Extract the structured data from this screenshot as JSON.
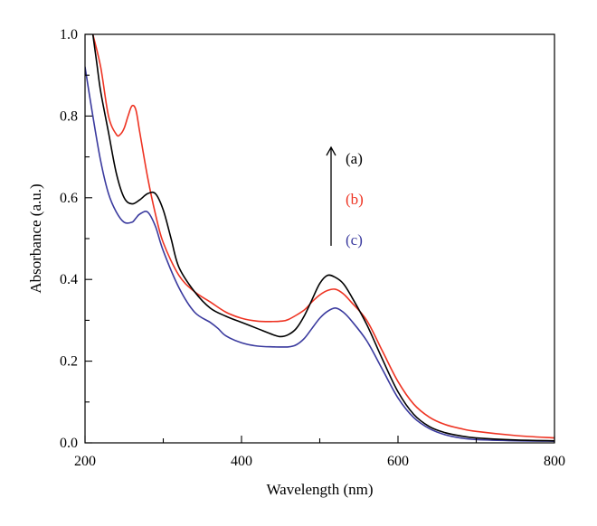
{
  "chart_data": {
    "type": "line",
    "xlabel": "Wavelength (nm)",
    "ylabel": "Absorbance (a.u.)",
    "xlim": [
      200,
      800
    ],
    "ylim": [
      0.0,
      1.0
    ],
    "x_ticks": [
      "200",
      "400",
      "600",
      "800"
    ],
    "y_ticks": [
      "0.0",
      "0.2",
      "0.4",
      "0.6",
      "0.8",
      "1.0"
    ],
    "grid": false,
    "legend": {
      "arrow": "up",
      "entries": [
        "(a)",
        "(b)",
        "(c)"
      ]
    },
    "series": [
      {
        "name": "(a)",
        "color": "#000000",
        "x": [
          210,
          215,
          220,
          230,
          240,
          250,
          260,
          270,
          280,
          290,
          300,
          310,
          320,
          340,
          360,
          380,
          400,
          420,
          440,
          450,
          460,
          470,
          480,
          490,
          500,
          510,
          520,
          530,
          540,
          560,
          580,
          600,
          620,
          640,
          660,
          680,
          700,
          750,
          800
        ],
        "y": [
          1.0,
          0.93,
          0.86,
          0.76,
          0.66,
          0.6,
          0.585,
          0.595,
          0.61,
          0.61,
          0.57,
          0.5,
          0.43,
          0.37,
          0.33,
          0.31,
          0.295,
          0.28,
          0.265,
          0.26,
          0.265,
          0.28,
          0.31,
          0.35,
          0.39,
          0.41,
          0.405,
          0.39,
          0.36,
          0.29,
          0.205,
          0.125,
          0.07,
          0.04,
          0.025,
          0.017,
          0.012,
          0.007,
          0.005
        ]
      },
      {
        "name": "(b)",
        "color": "#ee3322",
        "x": [
          210,
          220,
          230,
          240,
          245,
          250,
          255,
          260,
          265,
          270,
          280,
          290,
          300,
          320,
          340,
          360,
          380,
          400,
          420,
          440,
          450,
          460,
          480,
          490,
          500,
          510,
          520,
          530,
          540,
          560,
          580,
          600,
          620,
          640,
          660,
          680,
          700,
          750,
          800
        ],
        "y": [
          1.0,
          0.92,
          0.8,
          0.755,
          0.755,
          0.77,
          0.8,
          0.825,
          0.815,
          0.76,
          0.65,
          0.56,
          0.49,
          0.41,
          0.37,
          0.345,
          0.32,
          0.305,
          0.298,
          0.297,
          0.298,
          0.302,
          0.325,
          0.345,
          0.362,
          0.373,
          0.376,
          0.365,
          0.345,
          0.3,
          0.225,
          0.15,
          0.095,
          0.063,
          0.045,
          0.035,
          0.028,
          0.018,
          0.012
        ]
      },
      {
        "name": "(c)",
        "color": "#3a3a9e",
        "x": [
          200,
          210,
          220,
          230,
          240,
          250,
          260,
          265,
          270,
          280,
          290,
          300,
          320,
          340,
          360,
          370,
          380,
          400,
          420,
          440,
          460,
          470,
          480,
          490,
          500,
          510,
          520,
          530,
          540,
          560,
          580,
          600,
          620,
          640,
          660,
          680,
          700,
          750,
          800
        ],
        "y": [
          0.92,
          0.8,
          0.69,
          0.61,
          0.565,
          0.54,
          0.54,
          0.55,
          0.56,
          0.565,
          0.53,
          0.47,
          0.38,
          0.32,
          0.295,
          0.28,
          0.262,
          0.245,
          0.237,
          0.235,
          0.235,
          0.24,
          0.255,
          0.28,
          0.305,
          0.322,
          0.33,
          0.32,
          0.3,
          0.25,
          0.18,
          0.11,
          0.062,
          0.035,
          0.02,
          0.012,
          0.008,
          0.005,
          0.004
        ]
      }
    ]
  }
}
